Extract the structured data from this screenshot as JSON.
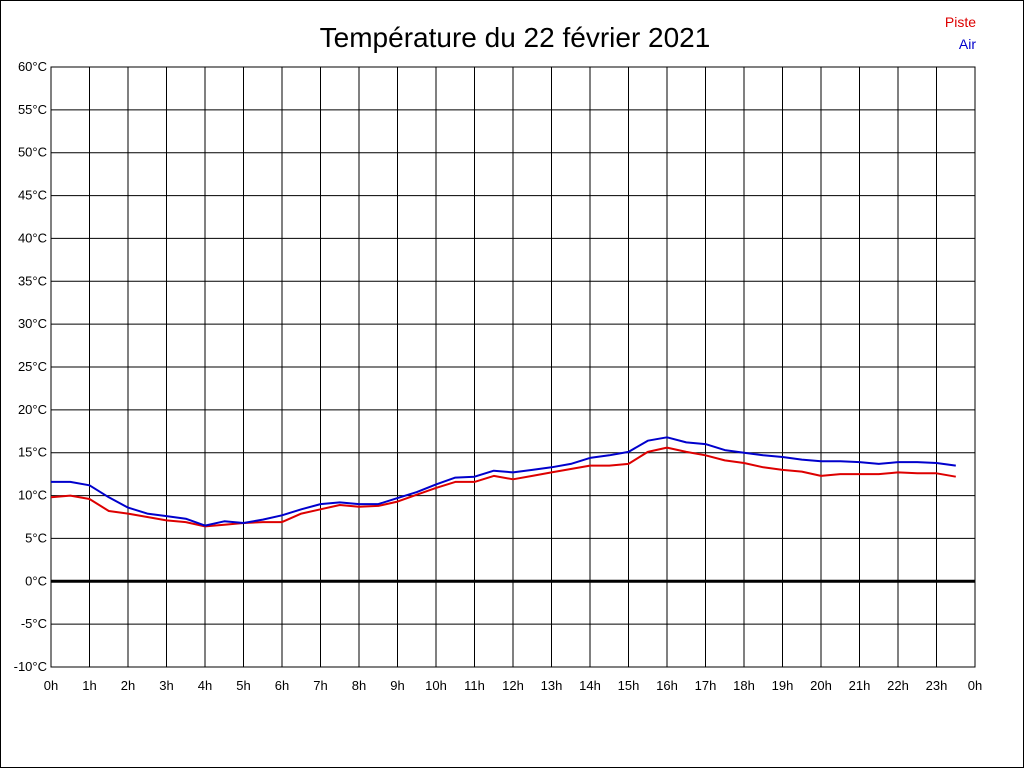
{
  "chart_data": {
    "type": "line",
    "title": "Température du 22 février 2021",
    "xlabel": "",
    "ylabel": "",
    "x_tick_labels": [
      "0h",
      "1h",
      "2h",
      "3h",
      "4h",
      "5h",
      "6h",
      "7h",
      "8h",
      "9h",
      "10h",
      "11h",
      "12h",
      "13h",
      "14h",
      "15h",
      "16h",
      "17h",
      "18h",
      "19h",
      "20h",
      "21h",
      "22h",
      "23h",
      "0h"
    ],
    "y_tick_labels": [
      "60°C",
      "55°C",
      "50°C",
      "45°C",
      "40°C",
      "35°C",
      "30°C",
      "25°C",
      "20°C",
      "15°C",
      "10°C",
      "5°C",
      "0°C",
      "-5°C",
      "-10°C"
    ],
    "xlim": [
      0,
      24
    ],
    "ylim": [
      -10,
      60
    ],
    "grid": true,
    "legend_position": "top-right",
    "zero_line": true,
    "x": [
      0,
      0.5,
      1,
      1.5,
      2,
      2.5,
      3,
      3.5,
      4,
      4.5,
      5,
      5.5,
      6,
      6.5,
      7,
      7.5,
      8,
      8.5,
      9,
      9.5,
      10,
      10.5,
      11,
      11.5,
      12,
      12.5,
      13,
      13.5,
      14,
      14.5,
      15,
      15.5,
      16,
      16.5,
      17,
      17.5,
      18,
      18.5,
      19,
      19.5,
      20,
      20.5,
      21,
      21.5,
      22,
      22.5,
      23,
      23.5
    ],
    "series": [
      {
        "name": "Piste",
        "color": "#dd0000",
        "values": [
          9.8,
          10.0,
          9.6,
          8.2,
          7.9,
          7.5,
          7.1,
          6.9,
          6.4,
          6.6,
          6.8,
          6.9,
          6.9,
          7.9,
          8.4,
          8.9,
          8.7,
          8.8,
          9.3,
          10.1,
          10.9,
          11.6,
          11.6,
          12.3,
          11.9,
          12.3,
          12.7,
          13.1,
          13.5,
          13.5,
          13.7,
          15.1,
          15.6,
          15.1,
          14.7,
          14.1,
          13.8,
          13.3,
          13.0,
          12.8,
          12.3,
          12.5,
          12.5,
          12.5,
          12.7,
          12.6,
          12.6,
          12.2
        ]
      },
      {
        "name": "Air",
        "color": "#0000cc",
        "values": [
          11.6,
          11.6,
          11.2,
          9.8,
          8.6,
          7.9,
          7.6,
          7.3,
          6.5,
          7.0,
          6.8,
          7.2,
          7.7,
          8.4,
          9.0,
          9.2,
          9.0,
          9.0,
          9.7,
          10.4,
          11.3,
          12.1,
          12.2,
          12.9,
          12.7,
          13.0,
          13.3,
          13.7,
          14.4,
          14.7,
          15.1,
          16.4,
          16.8,
          16.2,
          16.0,
          15.3,
          15.0,
          14.7,
          14.5,
          14.2,
          14.0,
          14.0,
          13.9,
          13.7,
          13.9,
          13.9,
          13.8,
          13.5
        ]
      }
    ]
  }
}
